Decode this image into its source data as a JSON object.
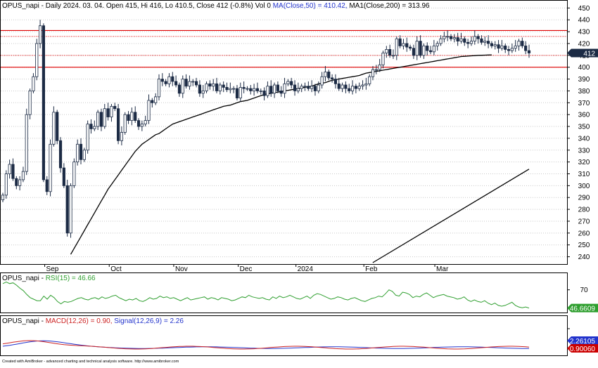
{
  "panes": {
    "price": {
      "header_prefix": "OPUS_napi - Daily 2024. 03. 04. Open 415, Hi 416, Lo 410.5, Close 412 (-0.8%) Vol 0 ",
      "header_ma": "MA(Close,50) = 410.42,",
      "header_ma2": " MA1(Close,200) = 313.96"
    },
    "rsi": {
      "header_prefix": "OPUS_napi - ",
      "header_rsi": "RSI(15) = 46.66"
    },
    "macd": {
      "header_prefix": "OPUS_napi - ",
      "header_macd": "MACD(12,26) = 0.90,",
      "header_signal": "Signal(12,26,9) = 2.26"
    }
  },
  "footer": "Created with AmiBroker - advanced charting and technical analysis software. http://www.amibroker.com",
  "colors": {
    "grid": "#c9c9c9",
    "ohlc_body": "#1c2b45",
    "ma_line": "#000000",
    "hline": "#e00000",
    "rsi": "#2f9f2f",
    "macd": "#cc2222",
    "signal": "#2233cc",
    "price_marker": "#1c2b45",
    "rsi_marker": "#2f9f2f",
    "signal_marker": "#2233cc",
    "macd_marker": "#cc0000"
  },
  "chart_data": [
    {
      "type": "candlestick",
      "title": "OPUS_napi - Daily",
      "x_axis_labels": [
        "Sep",
        "Oct",
        "Nov",
        "Dec",
        "2024",
        "Feb",
        "Mar"
      ],
      "y_ticks": [
        240,
        250,
        260,
        270,
        280,
        290,
        300,
        310,
        320,
        330,
        340,
        350,
        360,
        370,
        380,
        390,
        400,
        410,
        420,
        430,
        440,
        450
      ],
      "ylim": [
        235,
        452
      ],
      "last_close_label": "412",
      "last_close": 412,
      "horizontal_lines": [
        {
          "value": 431,
          "style": "solid"
        },
        {
          "value": 426,
          "style": "dotted"
        },
        {
          "value": 410,
          "style": "dotted"
        },
        {
          "value": 400,
          "style": "solid"
        }
      ],
      "close_series": [
        292,
        310,
        318,
        306,
        300,
        305,
        312,
        360,
        380,
        392,
        420,
        435,
        305,
        295,
        335,
        362,
        338,
        315,
        300,
        260,
        300,
        320,
        335,
        322,
        330,
        352,
        348,
        350,
        362,
        350,
        365,
        358,
        367,
        365,
        338,
        345,
        360,
        355,
        362,
        355,
        350,
        352,
        355,
        372,
        370,
        375,
        390,
        388,
        386,
        392,
        388,
        385,
        378,
        390,
        384,
        388,
        388,
        385,
        378,
        380,
        386,
        384,
        386,
        380,
        385,
        383,
        381,
        382,
        382,
        374,
        383,
        382,
        382,
        380,
        382,
        380,
        380,
        376,
        384,
        378,
        385,
        380,
        378,
        386,
        388,
        385,
        380,
        382,
        384,
        384,
        382,
        384,
        380,
        385,
        392,
        396,
        391,
        390,
        386,
        382,
        385,
        382,
        380,
        384,
        382,
        384,
        385,
        386,
        392,
        398,
        398,
        402,
        412,
        415,
        410,
        410,
        424,
        418,
        420,
        417,
        416,
        410,
        422,
        410,
        418,
        414,
        413,
        418,
        420,
        424,
        426,
        426,
        424,
        425,
        422,
        424,
        421,
        420,
        422,
        426,
        424,
        421,
        422,
        420,
        418,
        419,
        416,
        418,
        415,
        414,
        416,
        418,
        422,
        418,
        414,
        412
      ],
      "ma50_series": [
        null,
        null,
        null,
        null,
        null,
        null,
        null,
        null,
        null,
        null,
        null,
        null,
        null,
        null,
        null,
        null,
        null,
        null,
        null,
        null,
        242,
        247,
        252,
        257,
        262,
        267,
        272,
        277,
        282,
        287,
        292,
        297,
        301,
        305,
        309,
        313,
        317,
        321,
        325,
        329,
        332,
        335,
        337,
        339,
        341,
        343,
        344,
        346,
        348,
        350,
        352,
        353,
        354,
        355,
        356,
        357,
        358,
        359,
        360,
        361,
        362,
        363,
        364,
        365,
        366,
        367,
        367.5,
        368,
        369,
        370,
        371,
        371.5,
        372,
        373,
        374,
        375,
        376,
        377,
        377.5,
        378,
        378.5,
        379,
        379.5,
        380,
        380.5,
        381,
        381.5,
        382,
        382.5,
        383,
        383.5,
        384,
        385,
        386,
        386.5,
        387,
        388,
        389,
        389.5,
        390,
        390.5,
        391,
        391.5,
        392,
        392.5,
        393,
        394,
        395,
        395.5,
        396,
        396.5,
        397,
        397.5,
        398,
        398.5,
        399,
        399.5,
        400,
        400.5,
        401,
        401.5,
        402,
        402.5,
        403,
        403.5,
        404,
        404.5,
        405,
        405.5,
        406,
        406.5,
        407,
        407.5,
        408,
        408.5,
        409,
        409.2,
        409.4,
        409.6,
        409.8,
        410,
        410.1,
        410.2,
        410.3,
        410.42
      ],
      "ma200_series": [
        {
          "index": 110,
          "value": 235
        },
        {
          "index": 155,
          "value": 313.96
        }
      ]
    },
    {
      "type": "line",
      "title": "RSI(15)",
      "series": [
        {
          "name": "RSI(15)",
          "last": 46.6609,
          "values": [
            78,
            80,
            78,
            79,
            76,
            72,
            69,
            64,
            60,
            58,
            56,
            56,
            62,
            58,
            63,
            60,
            55,
            52,
            55,
            54,
            55,
            57,
            59,
            60,
            58,
            57,
            59,
            60,
            58,
            61,
            59,
            60,
            62,
            63,
            60,
            58,
            56,
            58,
            57,
            59,
            56,
            55,
            57,
            60,
            58,
            59,
            62,
            60,
            61,
            59,
            60,
            58,
            56,
            58,
            60,
            57,
            58,
            59,
            60,
            61,
            58,
            60,
            59,
            57,
            60,
            59,
            58,
            56,
            57,
            59,
            61,
            60,
            63,
            61,
            60,
            59,
            60,
            58,
            57,
            61,
            59,
            62,
            60,
            61,
            63,
            61,
            59,
            58,
            60,
            62,
            59,
            63,
            65,
            64,
            62,
            60,
            58,
            59,
            61,
            60,
            58,
            57,
            59,
            60,
            58,
            56,
            55,
            57,
            59,
            60,
            62,
            61,
            65,
            70,
            68,
            63,
            62,
            67,
            66,
            64,
            60,
            62,
            61,
            64,
            66,
            63,
            60,
            62,
            63,
            64,
            62,
            61,
            60,
            58,
            59,
            61,
            57,
            55,
            57,
            55,
            54,
            56,
            53,
            51,
            53,
            50,
            49,
            50,
            52,
            54,
            50,
            48,
            47,
            48,
            46.66
          ]
        }
      ],
      "last_value_label": "46.6609"
    },
    {
      "type": "line",
      "title": "MACD(12,26) / Signal(12,26,9)",
      "series": [
        {
          "name": "MACD(12,26)",
          "last": 0.9
        },
        {
          "name": "Signal(12,26,9)",
          "last": 2.26
        }
      ],
      "last_value_labels": [
        "2.26105",
        "0.90060"
      ]
    }
  ]
}
